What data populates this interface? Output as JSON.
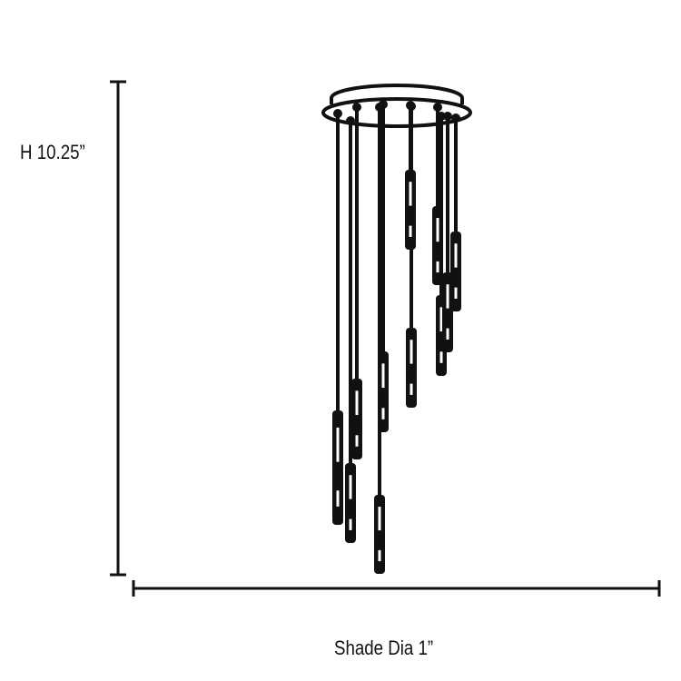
{
  "dimensions": {
    "height_label": "H 10.25”",
    "shade_label": "Shade Dia 1”"
  },
  "colors": {
    "line": "#111111",
    "background": "#ffffff"
  },
  "fixture": {
    "pendant_count": 11
  }
}
